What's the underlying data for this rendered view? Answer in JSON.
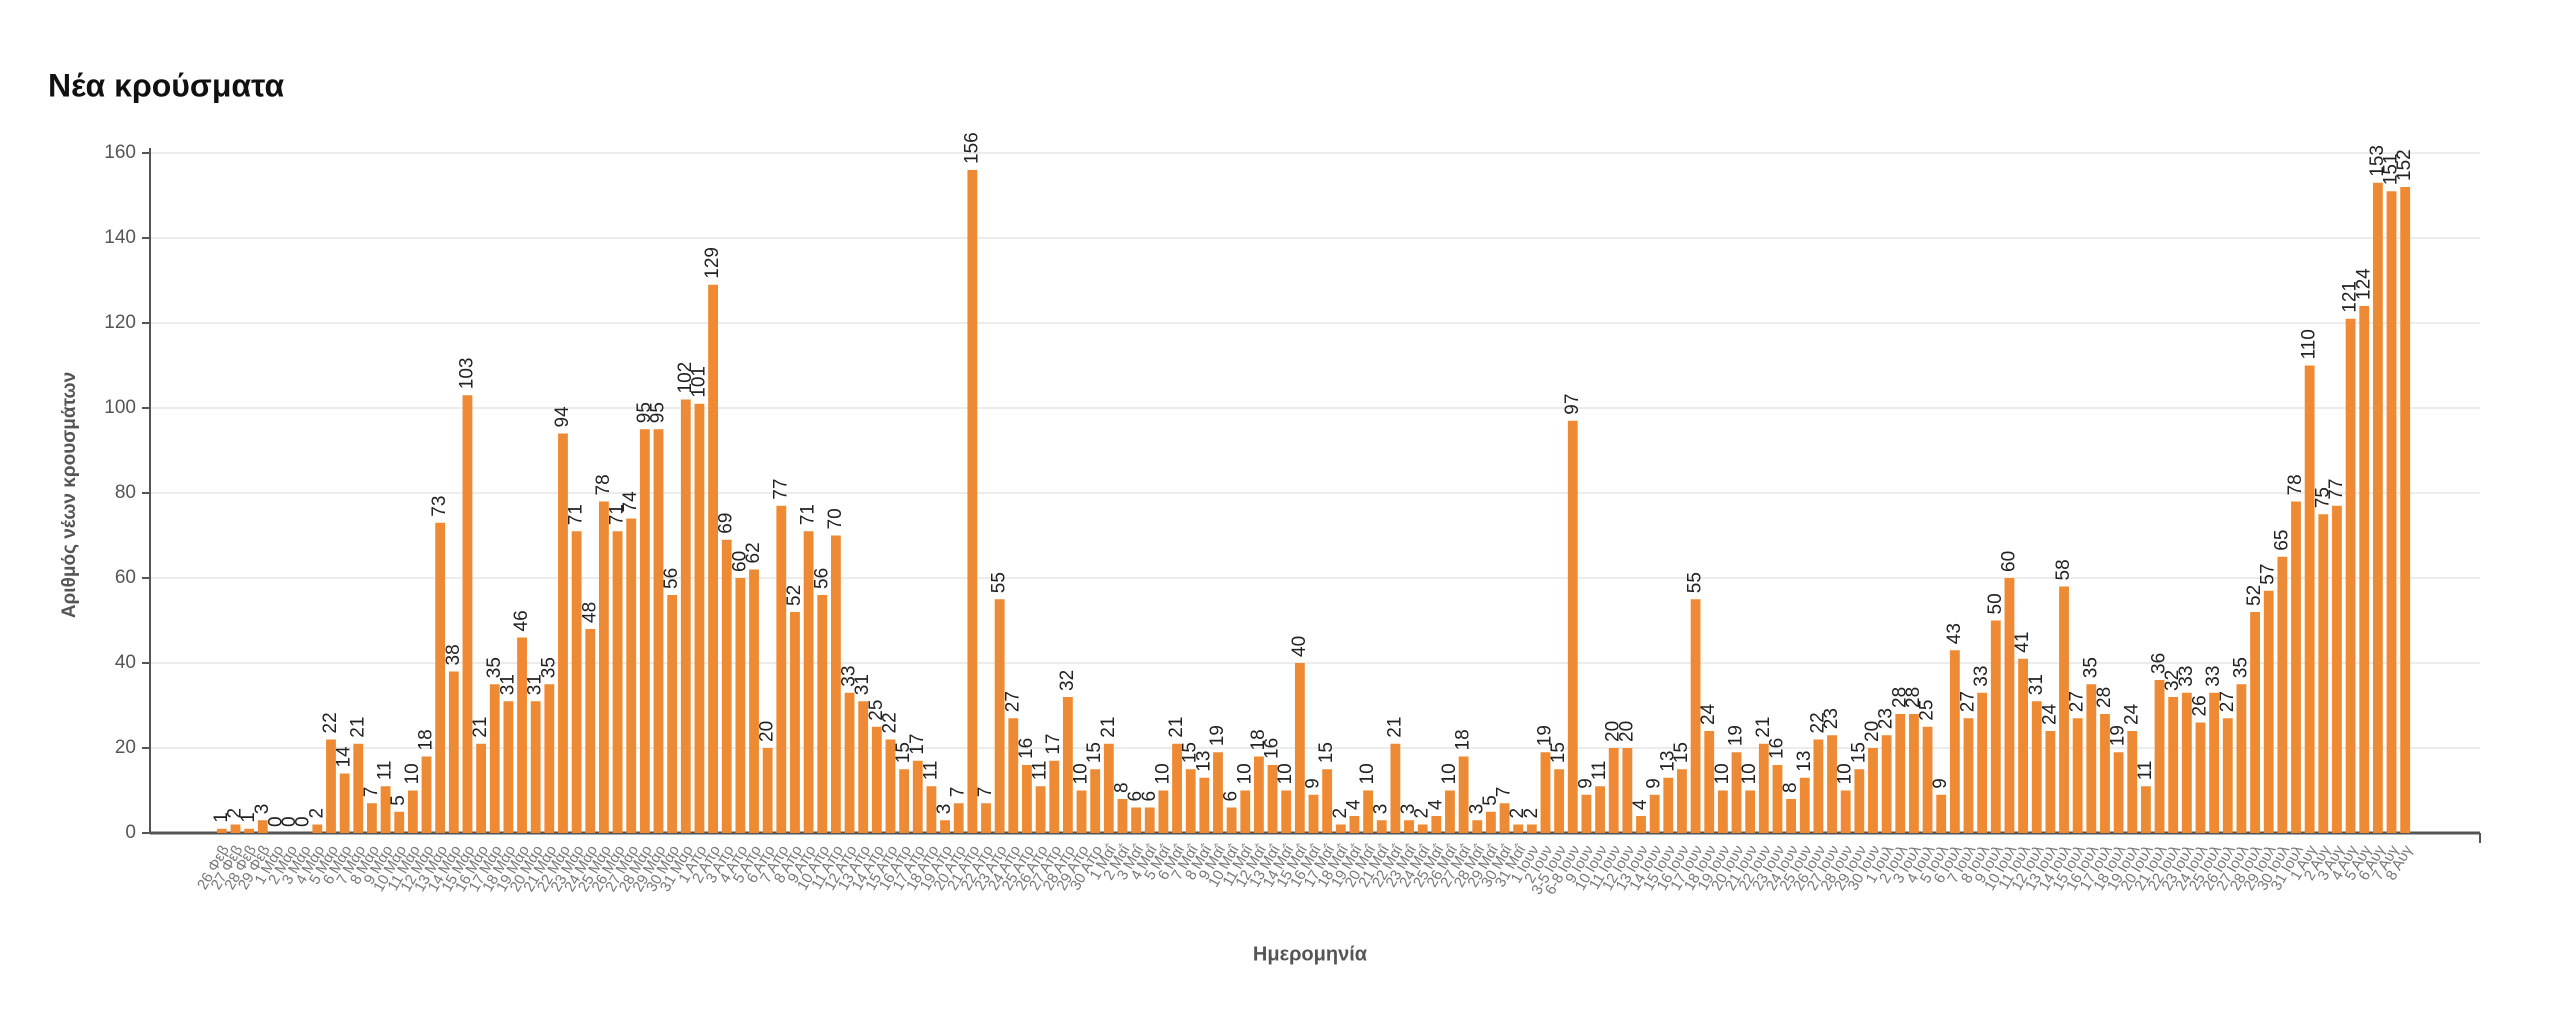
{
  "chart_data": {
    "type": "bar",
    "title": "Νέα κρούσματα",
    "y_label": "Αριθμός νέων κρουσμάτων",
    "x_label": "Ημερομηνία",
    "color": "#ee8a33",
    "grid": true,
    "ylim": [
      0,
      160
    ],
    "yticks": [
      0,
      20,
      40,
      60,
      80,
      100,
      120,
      140,
      160
    ],
    "categories": [
      "26 Φεβ",
      "27 Φεβ",
      "28 Φεβ",
      "29 Φεβ",
      "1 Μαρ",
      "2 Μαρ",
      "3 Μαρ",
      "4 Μαρ",
      "5 Μαρ",
      "6 Μαρ",
      "7 Μαρ",
      "8 Μαρ",
      "9 Μαρ",
      "10 Μαρ",
      "11 Μαρ",
      "12 Μαρ",
      "13 Μαρ",
      "14 Μαρ",
      "15 Μαρ",
      "16 Μαρ",
      "17 Μαρ",
      "18 Μαρ",
      "19 Μαρ",
      "20 Μαρ",
      "21 Μαρ",
      "22 Μαρ",
      "23 Μαρ",
      "24 Μαρ",
      "25 Μαρ",
      "26 Μαρ",
      "27 Μαρ",
      "28 Μαρ",
      "29 Μαρ",
      "30 Μαρ",
      "31 Μαρ",
      "1 Απρ",
      "2 Απρ",
      "3 Απρ",
      "4 Απρ",
      "5 Απρ",
      "6 Απρ",
      "7 Απρ",
      "8 Απρ",
      "9 Απρ",
      "10 Απρ",
      "11 Απρ",
      "12 Απρ",
      "13 Απρ",
      "14 Απρ",
      "15 Απρ",
      "16 Απρ",
      "17 Απρ",
      "18 Απρ",
      "19 Απρ",
      "20 Απρ",
      "21 Απρ",
      "22 Απρ",
      "23 Απρ",
      "24 Απρ",
      "25 Απρ",
      "26 Απρ",
      "27 Απρ",
      "28 Απρ",
      "29 Απρ",
      "30 Απρ",
      "1 Μαΐ",
      "2 Μαΐ",
      "3 Μαΐ",
      "4 Μαΐ",
      "5 Μαΐ",
      "6 Μαΐ",
      "7 Μαΐ",
      "8 Μαΐ",
      "9 Μαΐ",
      "10 Μαΐ",
      "11 Μαΐ",
      "12 Μαΐ",
      "13 Μαΐ",
      "14 Μαΐ",
      "15 Μαΐ",
      "16 Μαΐ",
      "17 Μαΐ",
      "18 Μαΐ",
      "19 Μαΐ",
      "20 Μαΐ",
      "21 Μαΐ",
      "22 Μαΐ",
      "23 Μαΐ",
      "24 Μαΐ",
      "25 Μαΐ",
      "26 Μαΐ",
      "27 Μαΐ",
      "28 Μαΐ",
      "29 Μαΐ",
      "30 Μαΐ",
      "31 Μαΐ",
      "1 Ιουν",
      "2 Ιουν",
      "3-5 Ιουν",
      "6-8 Ιουν",
      "9 Ιουν",
      "10 Ιουν",
      "11 Ιουν",
      "12 Ιουν",
      "13 Ιουν",
      "14 Ιουν",
      "15 Ιουν",
      "16 Ιουν",
      "17 Ιουν",
      "18 Ιουν",
      "19 Ιουν",
      "20 Ιουν",
      "21 Ιουν",
      "22 Ιουν",
      "23 Ιουν",
      "24 Ιουν",
      "25 Ιουν",
      "26 Ιουν",
      "27 Ιουν",
      "28 Ιουν",
      "29 Ιουν",
      "30 Ιουν",
      "1 Ιουλ",
      "2 Ιουλ",
      "3 Ιουλ",
      "4 Ιουλ",
      "5 Ιουλ",
      "6 Ιουλ",
      "7 Ιουλ",
      "8 Ιουλ",
      "9 Ιουλ",
      "10 Ιουλ",
      "11 Ιουλ",
      "12 Ιουλ",
      "13 Ιουλ",
      "14 Ιουλ",
      "15 Ιουλ",
      "16 Ιουλ",
      "17 Ιουλ",
      "18 Ιουλ",
      "19 Ιουλ",
      "20 Ιουλ",
      "21 Ιουλ",
      "22 Ιουλ",
      "23 Ιουλ",
      "24 Ιουλ",
      "25 Ιουλ",
      "26 Ιουλ",
      "27 Ιουλ",
      "28 Ιουλ",
      "29 Ιουλ",
      "30 Ιουλ",
      "31 Ιουλ",
      "1 Αυγ",
      "2 Αυγ",
      "3 Αυγ",
      "4 Αυγ",
      "5 Αυγ",
      "6 Αυγ",
      "7 Αυγ",
      "8 Αυγ"
    ],
    "values": [
      1,
      2,
      1,
      3,
      0,
      0,
      0,
      2,
      22,
      14,
      21,
      7,
      11,
      5,
      10,
      18,
      73,
      38,
      103,
      21,
      35,
      31,
      46,
      31,
      35,
      94,
      71,
      48,
      78,
      71,
      74,
      95,
      95,
      56,
      102,
      101,
      129,
      69,
      60,
      62,
      20,
      77,
      52,
      71,
      56,
      70,
      33,
      31,
      25,
      22,
      15,
      17,
      11,
      3,
      7,
      156,
      7,
      55,
      27,
      16,
      11,
      17,
      32,
      10,
      15,
      21,
      8,
      6,
      6,
      10,
      21,
      15,
      13,
      19,
      6,
      10,
      18,
      16,
      10,
      40,
      9,
      15,
      2,
      4,
      10,
      3,
      21,
      3,
      2,
      4,
      10,
      18,
      3,
      5,
      7,
      2,
      2,
      19,
      15,
      97,
      9,
      11,
      20,
      20,
      4,
      9,
      13,
      15,
      55,
      24,
      10,
      19,
      10,
      21,
      16,
      8,
      13,
      22,
      23,
      10,
      15,
      20,
      23,
      28,
      28,
      25,
      9,
      43,
      27,
      33,
      50,
      60,
      41,
      31,
      24,
      58,
      27,
      35,
      28,
      19,
      24,
      11,
      36,
      32,
      33,
      26,
      33,
      27,
      35,
      52,
      57,
      65,
      78,
      110,
      75,
      77,
      121,
      124,
      153,
      151,
      152
    ]
  }
}
